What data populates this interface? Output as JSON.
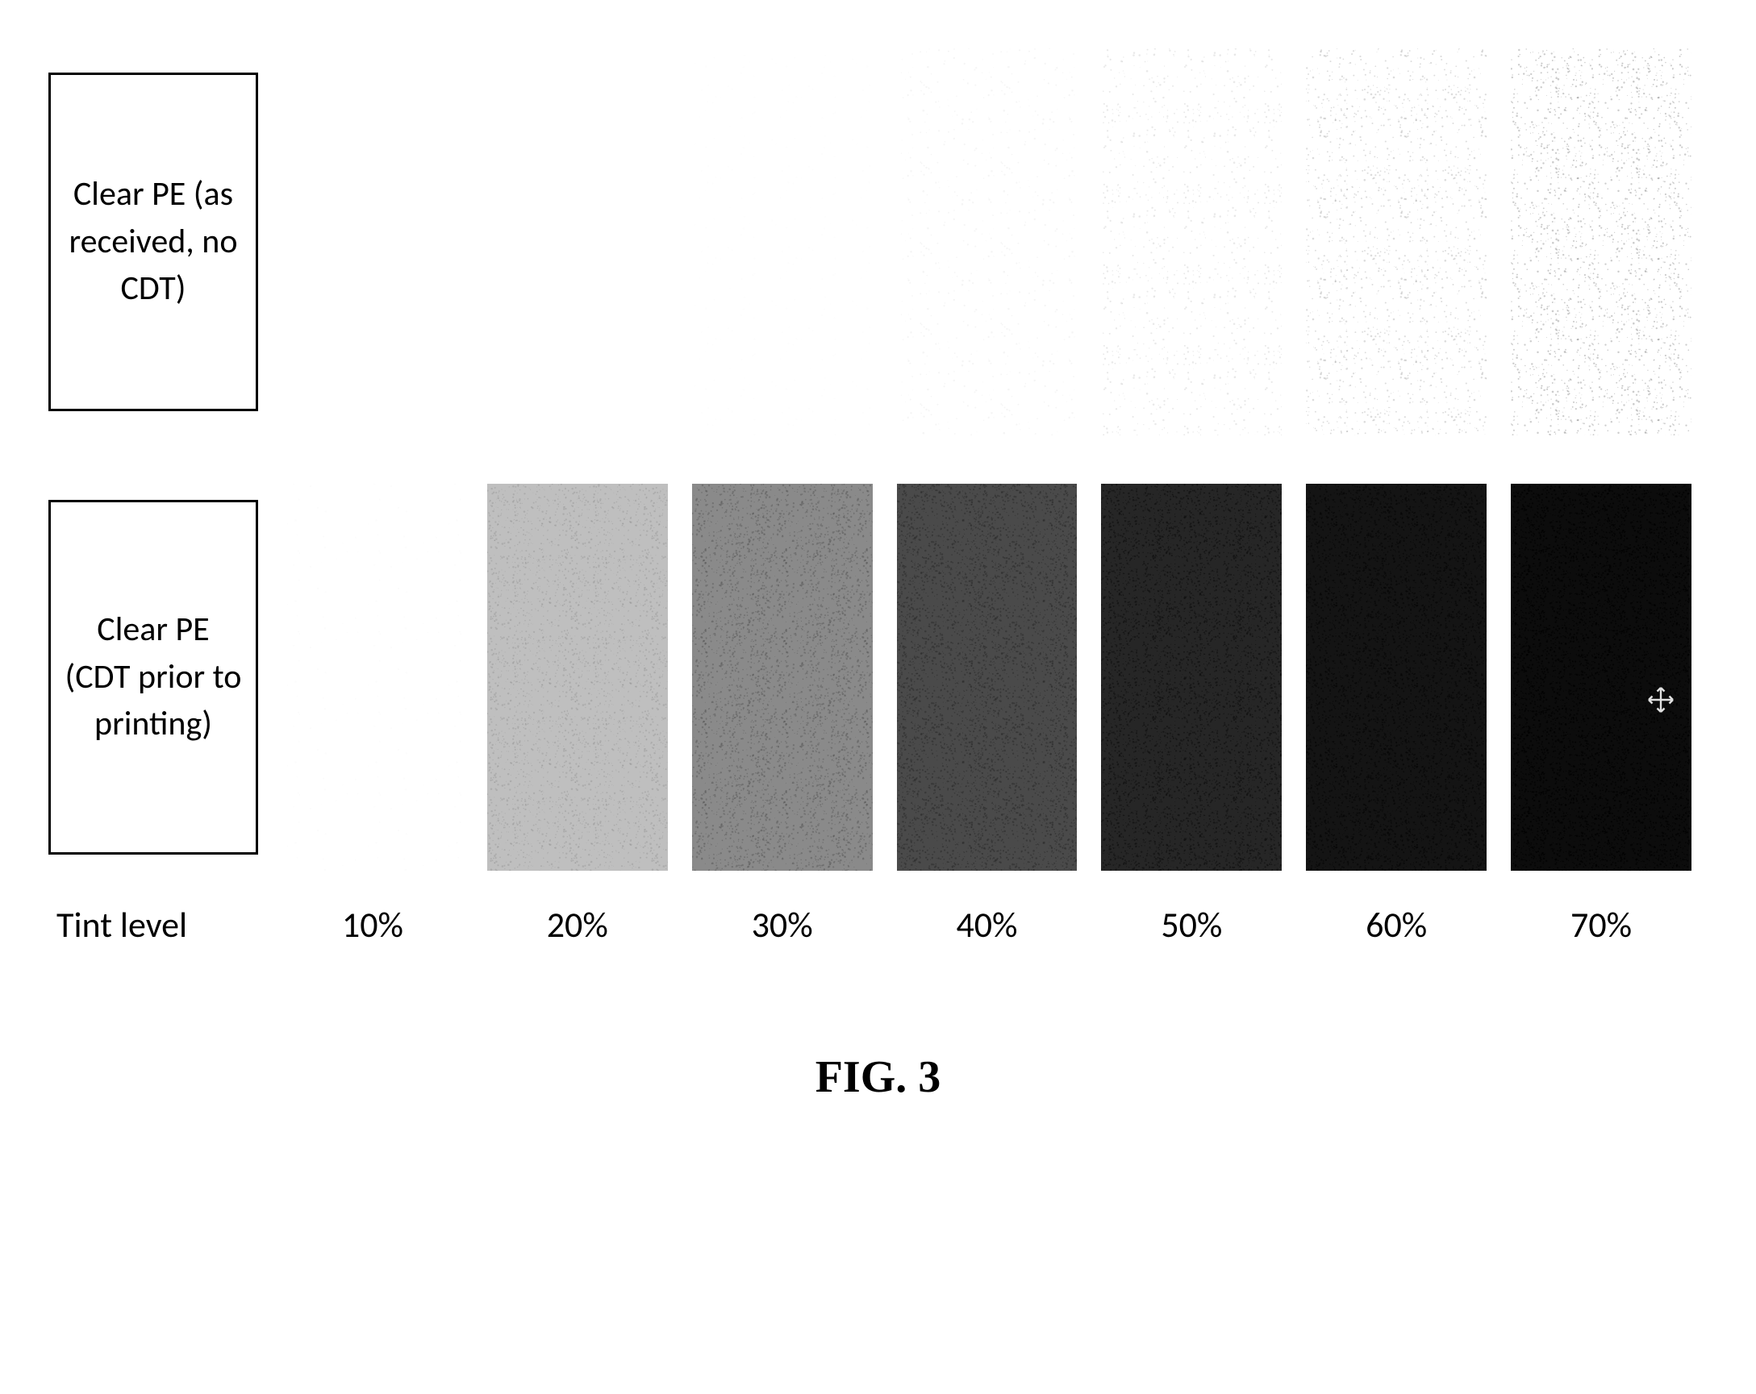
{
  "figure": {
    "caption": "FIG. 3",
    "axis_label": "Tint level",
    "tint_levels": [
      "10%",
      "20%",
      "30%",
      "40%",
      "50%",
      "60%",
      "70%"
    ],
    "rows": [
      {
        "label": "Clear PE (as received, no CDT)",
        "swatches": [
          {
            "base_color": "#ffffff",
            "noise_opacity": 0.0,
            "noise_density": 0,
            "noise_color": "#a0a0a0"
          },
          {
            "base_color": "#ffffff",
            "noise_opacity": 0.0,
            "noise_density": 0,
            "noise_color": "#a0a0a0"
          },
          {
            "base_color": "#ffffff",
            "noise_opacity": 0.02,
            "noise_density": 8,
            "noise_color": "#8c8c8c"
          },
          {
            "base_color": "#ffffff",
            "noise_opacity": 0.08,
            "noise_density": 20,
            "noise_color": "#7a7a7a"
          },
          {
            "base_color": "#ffffff",
            "noise_opacity": 0.15,
            "noise_density": 35,
            "noise_color": "#6b6b6b"
          },
          {
            "base_color": "#ffffff",
            "noise_opacity": 0.22,
            "noise_density": 55,
            "noise_color": "#606060"
          },
          {
            "base_color": "#ffffff",
            "noise_opacity": 0.3,
            "noise_density": 75,
            "noise_color": "#555555"
          }
        ]
      },
      {
        "label": "Clear PE (CDT prior to printing)",
        "swatches": [
          {
            "base_color": "#ffffff",
            "noise_opacity": 0.03,
            "noise_density": 6,
            "noise_color": "#b0b0b0"
          },
          {
            "base_color": "#bfbfbf",
            "noise_opacity": 0.35,
            "noise_density": 120,
            "noise_color": "#8a8a8a"
          },
          {
            "base_color": "#8a8a8a",
            "noise_opacity": 0.45,
            "noise_density": 160,
            "noise_color": "#555555"
          },
          {
            "base_color": "#4a4a4a",
            "noise_opacity": 0.55,
            "noise_density": 200,
            "noise_color": "#2b2b2b"
          },
          {
            "base_color": "#262626",
            "noise_opacity": 0.6,
            "noise_density": 220,
            "noise_color": "#0f0f0f"
          },
          {
            "base_color": "#141414",
            "noise_opacity": 0.62,
            "noise_density": 230,
            "noise_color": "#050505"
          },
          {
            "base_color": "#0c0c0c",
            "noise_opacity": 0.65,
            "noise_density": 240,
            "noise_color": "#000000"
          }
        ]
      }
    ],
    "cursor_present": true,
    "cursor_row": 1,
    "cursor_col": 6,
    "background_color": "#ffffff",
    "label_border_color": "#000000",
    "label_fontsize": 42,
    "tint_fontsize": 44,
    "caption_fontsize": 56
  }
}
